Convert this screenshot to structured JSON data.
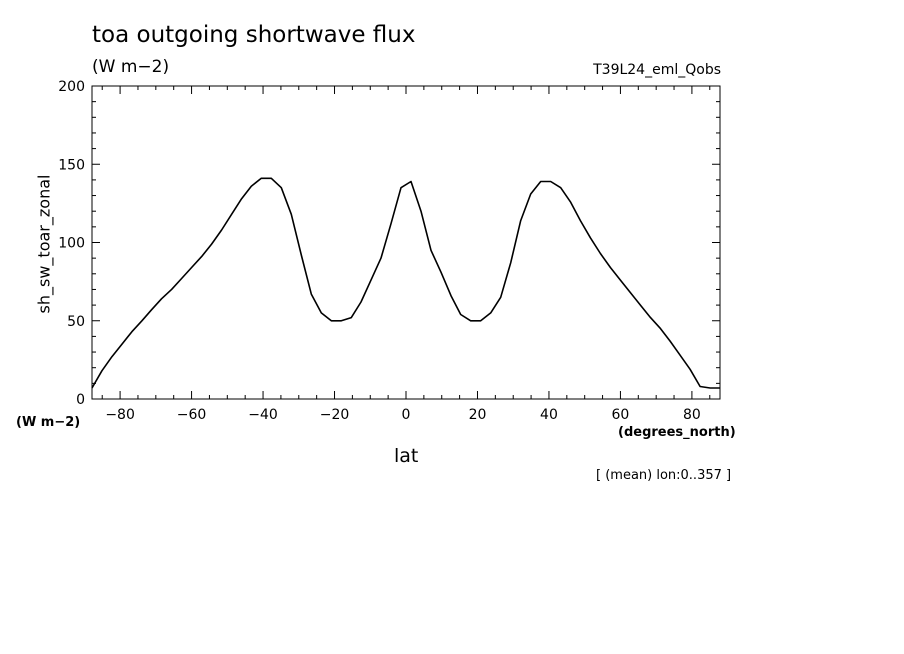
{
  "chart_data": {
    "type": "line",
    "title": "toa outgoing shortwave flux",
    "subtitle": "(W m−2)",
    "run_id": "T39L24_eml_Qobs",
    "xlabel": "lat",
    "ylabel": "sh_sw_toar_zonal",
    "x_units": "(degrees_north)",
    "y_units": "(W m−2)",
    "annotation": "[ (mean) lon:0..357 ]",
    "xlim": [
      -87.86,
      87.86
    ],
    "ylim": [
      0,
      200
    ],
    "x_ticks": [
      -80,
      -60,
      -40,
      -20,
      0,
      20,
      40,
      60,
      80
    ],
    "x_tick_labels": [
      "−80",
      "−60",
      "−40",
      "−20",
      "0",
      "20",
      "40",
      "60",
      "80"
    ],
    "y_ticks": [
      0,
      50,
      100,
      150,
      200
    ],
    "y_tick_labels": [
      "0",
      "50",
      "100",
      "150",
      "200"
    ],
    "grid": false,
    "series": [
      {
        "x": [
          -87.86,
          -85.1,
          -82.3,
          -79.5,
          -76.7,
          -73.9,
          -71.2,
          -68.4,
          -65.6,
          -62.8,
          -60.0,
          -57.2,
          -54.4,
          -51.6,
          -48.8,
          -46.0,
          -43.3,
          -40.5,
          -37.7,
          -34.9,
          -32.1,
          -29.3,
          -26.5,
          -23.7,
          -20.9,
          -18.1,
          -15.3,
          -12.6,
          -9.8,
          -7.0,
          -4.2,
          -1.4,
          1.4,
          4.2,
          7.0,
          9.8,
          12.6,
          15.3,
          18.1,
          20.9,
          23.7,
          26.5,
          29.3,
          32.1,
          34.9,
          37.7,
          40.5,
          43.3,
          46.0,
          48.8,
          51.6,
          54.4,
          57.2,
          60.0,
          62.8,
          65.6,
          68.4,
          71.2,
          73.9,
          76.7,
          79.5,
          82.3,
          85.1,
          87.86
        ],
        "y": [
          7,
          18,
          27,
          35,
          43,
          50,
          57,
          64,
          70,
          77,
          84,
          91,
          99,
          108,
          118,
          128,
          136,
          141,
          141,
          135,
          118,
          92,
          67,
          55,
          50,
          50,
          52,
          62,
          76,
          90,
          112,
          135,
          139,
          120,
          95,
          81,
          66,
          54,
          50,
          50,
          55,
          65,
          87,
          114,
          131,
          139,
          139,
          135,
          126,
          114,
          103,
          93,
          84,
          76,
          68,
          60,
          52,
          45,
          37,
          28,
          19,
          8,
          7,
          7
        ]
      }
    ]
  }
}
